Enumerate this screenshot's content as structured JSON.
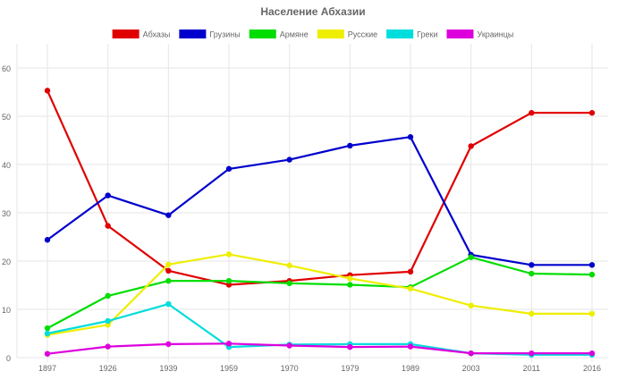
{
  "chart_data": {
    "type": "line",
    "title": "Население Абхазии",
    "xlabel": "",
    "ylabel": "",
    "categories": [
      "1897",
      "1926",
      "1939",
      "1959",
      "1970",
      "1979",
      "1989",
      "2003",
      "2011",
      "2016"
    ],
    "ylim": [
      0,
      65
    ],
    "yticks": [
      0,
      10,
      20,
      30,
      40,
      50,
      60
    ],
    "grid": true,
    "legend": "top",
    "series": [
      {
        "name": "Абхазы",
        "color": "#e00000",
        "values": [
          55.3,
          27.3,
          18.0,
          15.1,
          15.9,
          17.1,
          17.8,
          43.8,
          50.7,
          50.7
        ]
      },
      {
        "name": "Грузины",
        "color": "#0000cc",
        "values": [
          24.4,
          33.6,
          29.5,
          39.1,
          41.0,
          43.9,
          45.7,
          21.3,
          19.2,
          19.2
        ]
      },
      {
        "name": "Армяне",
        "color": "#00dd00",
        "values": [
          6.1,
          12.8,
          15.9,
          15.9,
          15.4,
          15.1,
          14.6,
          20.8,
          17.4,
          17.2
        ]
      },
      {
        "name": "Русские",
        "color": "#eeee00",
        "values": [
          4.7,
          6.8,
          19.3,
          21.4,
          19.1,
          16.4,
          14.3,
          10.8,
          9.1,
          9.1
        ]
      },
      {
        "name": "Греки",
        "color": "#00dddd",
        "values": [
          5.0,
          7.6,
          11.1,
          2.2,
          2.7,
          2.8,
          2.8,
          0.9,
          0.6,
          0.6
        ]
      },
      {
        "name": "Украинцы",
        "color": "#dd00dd",
        "values": [
          0.8,
          2.3,
          2.8,
          2.9,
          2.5,
          2.2,
          2.3,
          0.9,
          0.9,
          0.9
        ]
      }
    ]
  }
}
